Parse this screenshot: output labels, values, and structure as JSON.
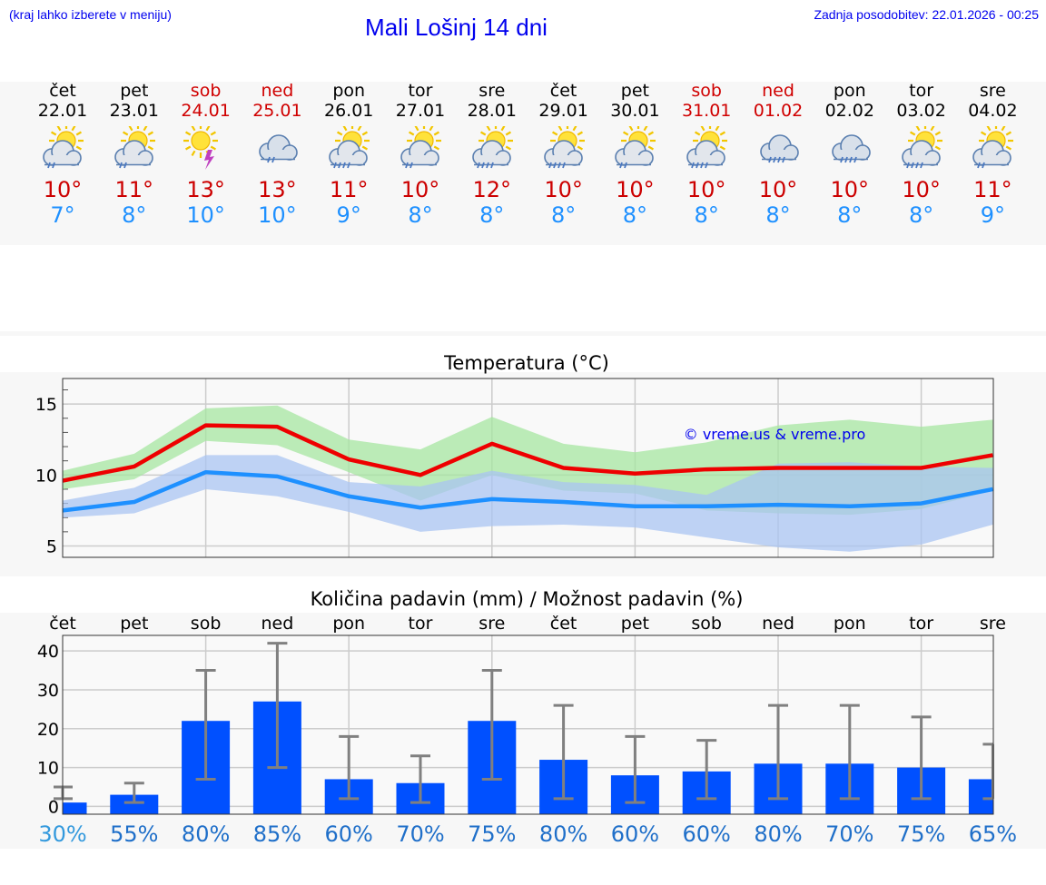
{
  "header": {
    "hint": "(kraj lahko izberete v meniju)",
    "title": "Mali Lošinj 14 dni",
    "updated": "Zadnja posodobitev: 22.01.2026 - 00:25"
  },
  "days": [
    {
      "name": "čet",
      "date": "22.01",
      "icon": "sun-cloud-light-rain-icon",
      "tmax": "10°",
      "tmin": "7°",
      "weekend": false
    },
    {
      "name": "pet",
      "date": "23.01",
      "icon": "sun-cloud-light-rain-icon",
      "tmax": "11°",
      "tmin": "8°",
      "weekend": false
    },
    {
      "name": "sob",
      "date": "24.01",
      "icon": "sun-cloud-lightning-icon",
      "tmax": "13°",
      "tmin": "10°",
      "weekend": true
    },
    {
      "name": "ned",
      "date": "25.01",
      "icon": "cloud-light-rain-icon",
      "tmax": "13°",
      "tmin": "10°",
      "weekend": true
    },
    {
      "name": "pon",
      "date": "26.01",
      "icon": "sun-cloud-rain-icon",
      "tmax": "11°",
      "tmin": "9°",
      "weekend": false
    },
    {
      "name": "tor",
      "date": "27.01",
      "icon": "sun-cloud-light-rain-icon",
      "tmax": "10°",
      "tmin": "8°",
      "weekend": false
    },
    {
      "name": "sre",
      "date": "28.01",
      "icon": "sun-cloud-rain-icon",
      "tmax": "12°",
      "tmin": "8°",
      "weekend": false
    },
    {
      "name": "čet",
      "date": "29.01",
      "icon": "sun-cloud-rain-icon",
      "tmax": "10°",
      "tmin": "8°",
      "weekend": false
    },
    {
      "name": "pet",
      "date": "30.01",
      "icon": "sun-cloud-light-rain-icon",
      "tmax": "10°",
      "tmin": "8°",
      "weekend": false
    },
    {
      "name": "sob",
      "date": "31.01",
      "icon": "sun-cloud-rain-icon",
      "tmax": "10°",
      "tmin": "8°",
      "weekend": true
    },
    {
      "name": "ned",
      "date": "01.02",
      "icon": "cloud-rain-icon",
      "tmax": "10°",
      "tmin": "8°",
      "weekend": true
    },
    {
      "name": "pon",
      "date": "02.02",
      "icon": "cloud-rain-icon",
      "tmax": "10°",
      "tmin": "8°",
      "weekend": false
    },
    {
      "name": "tor",
      "date": "03.02",
      "icon": "sun-cloud-rain-icon",
      "tmax": "10°",
      "tmin": "8°",
      "weekend": false
    },
    {
      "name": "sre",
      "date": "04.02",
      "icon": "sun-cloud-light-rain-icon",
      "tmax": "11°",
      "tmin": "9°",
      "weekend": false
    }
  ],
  "colors": {
    "max_line": "#ee0000",
    "min_line": "#1e90ff",
    "max_band": "#a5e6a0",
    "min_band": "#a9c4f2",
    "bar": "#0050ff",
    "errbar": "#808080",
    "pct_first": "#3399dd",
    "pct": "#1f6fc9",
    "grid": "#cccccc"
  },
  "chart_data": [
    {
      "type": "line",
      "title": "Temperatura (°C)",
      "watermark": "© vreme.us & vreme.pro",
      "x": [
        0,
        1,
        2,
        3,
        4,
        5,
        6,
        7,
        8,
        9,
        10,
        11,
        12,
        13
      ],
      "ylim": [
        4.2,
        16.8
      ],
      "yticks": [
        5,
        10,
        15
      ],
      "series": [
        {
          "name": "max",
          "values": [
            9.6,
            10.6,
            13.5,
            13.4,
            11.1,
            10.0,
            12.2,
            10.5,
            10.1,
            10.4,
            10.5,
            10.5,
            10.5,
            11.4
          ],
          "band_low": [
            9.0,
            9.7,
            12.4,
            12.1,
            10.2,
            8.2,
            10.0,
            8.9,
            8.7,
            7.5,
            7.3,
            7.2,
            7.6,
            8.9
          ],
          "band_high": [
            10.3,
            11.5,
            14.7,
            14.9,
            12.5,
            11.8,
            14.1,
            12.2,
            11.6,
            12.3,
            13.5,
            13.9,
            13.4,
            13.9
          ]
        },
        {
          "name": "min",
          "values": [
            7.5,
            8.1,
            10.2,
            9.9,
            8.5,
            7.7,
            8.3,
            8.1,
            7.8,
            7.8,
            7.9,
            7.8,
            8.0,
            9.0
          ],
          "band_low": [
            7.0,
            7.3,
            9.0,
            8.5,
            7.4,
            6.0,
            6.4,
            6.5,
            6.3,
            5.6,
            4.9,
            4.6,
            5.1,
            6.5
          ],
          "band_high": [
            8.2,
            9.1,
            11.4,
            11.4,
            9.5,
            9.2,
            10.3,
            9.5,
            9.3,
            8.6,
            10.8,
            10.9,
            10.6,
            10.5
          ]
        }
      ]
    },
    {
      "type": "bar",
      "title": "Količina padavin (mm) / Možnost padavin (%)",
      "categories": [
        "čet",
        "pet",
        "sob",
        "ned",
        "pon",
        "tor",
        "sre",
        "čet",
        "pet",
        "sob",
        "ned",
        "pon",
        "tor",
        "sre"
      ],
      "values": [
        1,
        3,
        22,
        27,
        7,
        6,
        22,
        12,
        8,
        9,
        11,
        11,
        10,
        7
      ],
      "err_low": [
        2,
        1,
        7,
        10,
        2,
        1,
        7,
        2,
        1,
        2,
        2,
        2,
        2,
        2
      ],
      "err_high": [
        5,
        6,
        35,
        42,
        18,
        13,
        35,
        26,
        18,
        17,
        26,
        26,
        23,
        16
      ],
      "chance_percent": [
        "30%",
        "55%",
        "80%",
        "85%",
        "60%",
        "70%",
        "75%",
        "80%",
        "60%",
        "60%",
        "80%",
        "70%",
        "75%",
        "65%"
      ],
      "yticks": [
        0,
        10,
        20,
        30,
        40
      ],
      "ylim": [
        -2,
        44
      ]
    }
  ]
}
